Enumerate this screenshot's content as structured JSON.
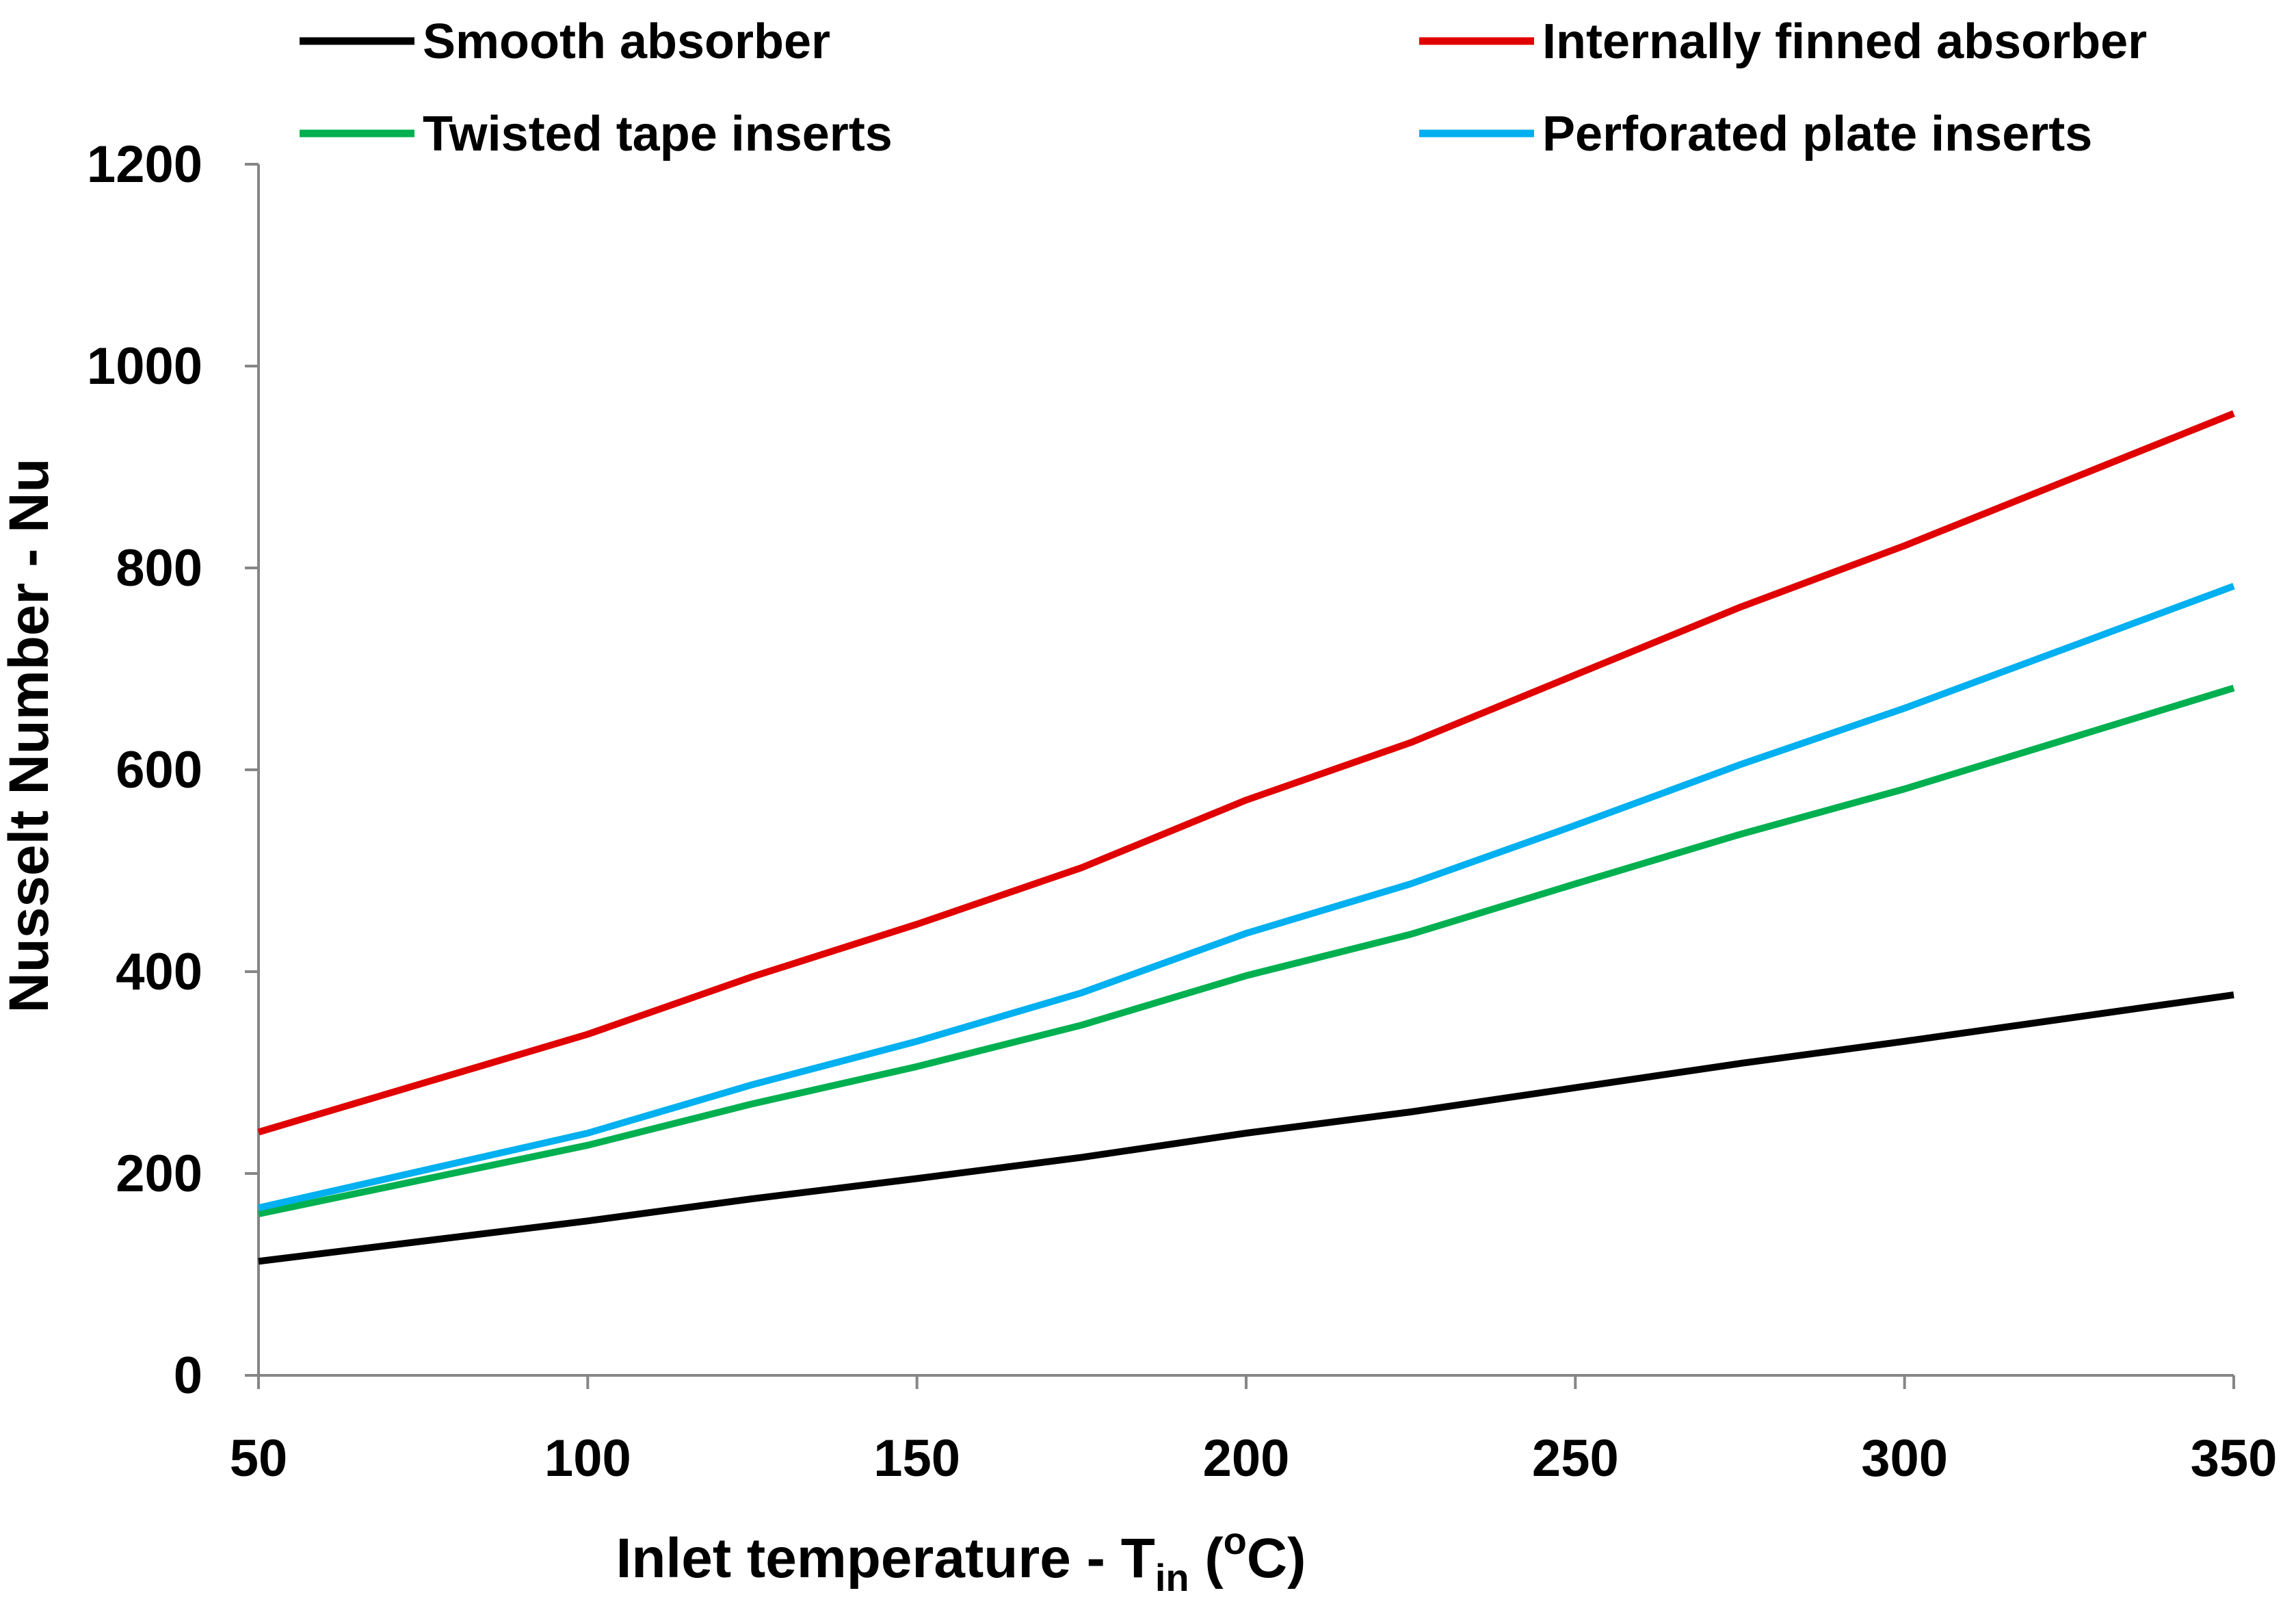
{
  "chart_data": {
    "type": "line",
    "title": "",
    "xlabel": {
      "main": "Inlet temperature - T",
      "subscript": "in",
      "open": " (",
      "superscript": "o",
      "close": "C)"
    },
    "ylabel": "Nusselt Number - Nu",
    "xlim": [
      50,
      350
    ],
    "ylim": [
      0,
      1200
    ],
    "x_ticks": [
      50,
      100,
      150,
      200,
      250,
      300,
      350
    ],
    "y_ticks": [
      0,
      200,
      400,
      600,
      800,
      1000,
      1200
    ],
    "grid": false,
    "legend_position": "top",
    "x": [
      50,
      100,
      125,
      150,
      175,
      200,
      225,
      250,
      275,
      300,
      350
    ],
    "series": [
      {
        "name": "Smooth absorber",
        "color": "#000000",
        "values": [
          113,
          153,
          175,
          195,
          216,
          240,
          261,
          285,
          309,
          331,
          377
        ]
      },
      {
        "name": "Internally finned absorber",
        "color": "#e00000",
        "values": [
          241,
          338,
          395,
          447,
          503,
          570,
          627,
          694,
          761,
          822,
          953
        ]
      },
      {
        "name": "Twisted tape inserts",
        "color": "#00b050",
        "values": [
          160,
          228,
          269,
          306,
          347,
          396,
          437,
          487,
          536,
          581,
          681
        ]
      },
      {
        "name": "Perforated plate inserts",
        "color": "#00b0f0",
        "values": [
          166,
          240,
          288,
          331,
          379,
          438,
          487,
          545,
          605,
          661,
          782
        ]
      }
    ]
  }
}
